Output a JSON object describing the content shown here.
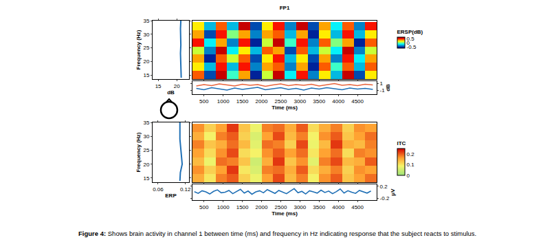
{
  "caption": {
    "label": "Figure 4:",
    "text": "Shows brain activity in channel 1 between time (ms) and frequency in Hz indicating response that the subject reacts to stimulus."
  },
  "chart_data": [
    {
      "type": "heatmap",
      "title": "FP1",
      "x": [
        350,
        650,
        950,
        1250,
        1550,
        1850,
        2150,
        2450,
        2750,
        3050,
        3350,
        3650,
        3950,
        4250,
        4550,
        4850
      ],
      "y": [
        15,
        18,
        21,
        24,
        27,
        30,
        33
      ],
      "z": [
        [
          0.4,
          -0.5,
          0.6,
          -0.1,
          0.3,
          -0.6,
          0.1,
          0.6,
          -0.2,
          0.5,
          -0.4,
          0.2,
          -0.3,
          0.6,
          -0.5,
          0.2
        ],
        [
          0.2,
          -0.3,
          0.5,
          -0.3,
          0.5,
          -0.4,
          0.3,
          0.4,
          -0.4,
          0.3,
          -0.6,
          0.4,
          -0.1,
          0.4,
          -0.3,
          0.4
        ],
        [
          0.3,
          -0.6,
          0.4,
          0.1,
          0.4,
          -0.5,
          0.2,
          0.5,
          -0.3,
          0.2,
          -0.5,
          0.3,
          -0.4,
          0.5,
          -0.2,
          0.3
        ],
        [
          0.1,
          -0.4,
          0.6,
          -0.2,
          0.2,
          -0.3,
          0.4,
          0.3,
          -0.5,
          0.4,
          -0.3,
          0.1,
          -0.2,
          0.6,
          -0.4,
          0.1
        ],
        [
          0.5,
          -0.2,
          0.3,
          -0.4,
          0.5,
          -0.6,
          0.1,
          0.6,
          -0.1,
          0.5,
          -0.4,
          0.4,
          0.0,
          0.3,
          -0.6,
          0.4
        ],
        [
          0.3,
          -0.5,
          0.5,
          0.0,
          0.3,
          -0.4,
          0.3,
          0.4,
          -0.3,
          0.3,
          -0.6,
          0.2,
          -0.3,
          0.5,
          -0.3,
          0.2
        ],
        [
          0.2,
          -0.3,
          0.4,
          -0.3,
          0.6,
          -0.5,
          0.2,
          0.5,
          -0.4,
          0.6,
          -0.5,
          0.3,
          -0.2,
          0.4,
          -0.4,
          0.5
        ]
      ],
      "xlim": [
        200,
        5000
      ],
      "ylim": [
        13.5,
        35
      ],
      "yticks": [
        15,
        20,
        25,
        30,
        35
      ],
      "y_label": "Frequency (Hz)",
      "tick_labels": "y",
      "color": "jet",
      "colorbar": {
        "title": "ERSP(dB)",
        "range": [
          -0.7,
          0.7
        ],
        "ticks": [
          -0.5,
          0,
          0.5
        ]
      }
    },
    {
      "type": "line",
      "x": [
        21.2,
        21.1,
        21.0,
        21.0,
        21.1,
        21.0,
        21.0,
        21.1
      ],
      "y": [
        14,
        17,
        20,
        23,
        26,
        29,
        32,
        35
      ],
      "xlim": [
        13.5,
        23.3
      ],
      "xticks": [
        15,
        20
      ],
      "x_label": "dB",
      "color": "#1f6fb5"
    },
    {
      "type": "line",
      "x": [
        300,
        500,
        700,
        900,
        1100,
        1300,
        1500,
        1700,
        1900,
        2100,
        2300,
        2500,
        2700,
        2900,
        3100,
        3300,
        3500,
        3700,
        3900,
        4100,
        4300,
        4500,
        4700,
        4900
      ],
      "series": [
        {
          "color": "#e8643c",
          "values": [
            0.2,
            0.6,
            0.3,
            0.8,
            0.5,
            0.2,
            0.7,
            0.4,
            0.6,
            0.1,
            0.5,
            0.8,
            0.3,
            0.6,
            0.4,
            0.7,
            0.2,
            0.5,
            0.9,
            0.4,
            0.6,
            0.3,
            0.7,
            0.5
          ]
        },
        {
          "color": "#1f6fb5",
          "values": [
            -0.5,
            -0.9,
            -0.3,
            -0.7,
            -1.0,
            -0.4,
            -0.8,
            -0.5,
            -0.2,
            -0.9,
            -0.6,
            -0.3,
            -0.8,
            -0.5,
            -1.0,
            -0.4,
            -0.7,
            -0.3,
            -0.6,
            -0.9,
            -0.4,
            -0.7,
            -0.5,
            -0.8
          ]
        }
      ],
      "xlim": [
        200,
        5000
      ],
      "xticks": [
        500,
        1000,
        1500,
        2000,
        2500,
        3000,
        3500,
        4000,
        4500
      ],
      "x_label": "Time (ms)",
      "ylim": [
        -2.2,
        1.6
      ],
      "yticks": [
        -1,
        1
      ],
      "y_label": "dB"
    },
    {
      "type": "heatmap",
      "x": [
        350,
        650,
        950,
        1250,
        1550,
        1850,
        2150,
        2450,
        2750,
        3050,
        3350,
        3650,
        3950,
        4250,
        4550,
        4850
      ],
      "y": [
        15,
        18,
        21,
        24,
        27,
        30,
        33
      ],
      "z": [
        [
          0.15,
          0.1,
          0.18,
          0.2,
          0.12,
          0.08,
          0.16,
          0.21,
          0.14,
          0.18,
          0.09,
          0.17,
          0.2,
          0.13,
          0.16,
          0.19
        ],
        [
          0.17,
          0.12,
          0.16,
          0.22,
          0.1,
          0.06,
          0.18,
          0.19,
          0.15,
          0.2,
          0.11,
          0.15,
          0.18,
          0.12,
          0.17,
          0.16
        ],
        [
          0.14,
          0.08,
          0.19,
          0.18,
          0.13,
          0.05,
          0.15,
          0.22,
          0.13,
          0.17,
          0.07,
          0.18,
          0.21,
          0.14,
          0.15,
          0.2
        ],
        [
          0.16,
          0.11,
          0.17,
          0.21,
          0.11,
          0.09,
          0.17,
          0.2,
          0.16,
          0.19,
          0.1,
          0.16,
          0.19,
          0.11,
          0.18,
          0.17
        ],
        [
          0.18,
          0.13,
          0.15,
          0.19,
          0.14,
          0.07,
          0.19,
          0.18,
          0.12,
          0.21,
          0.08,
          0.14,
          0.22,
          0.15,
          0.14,
          0.18
        ],
        [
          0.15,
          0.09,
          0.18,
          0.2,
          0.12,
          0.06,
          0.16,
          0.21,
          0.14,
          0.18,
          0.09,
          0.17,
          0.2,
          0.13,
          0.16,
          0.19
        ],
        [
          0.17,
          0.12,
          0.16,
          0.22,
          0.13,
          0.08,
          0.18,
          0.19,
          0.15,
          0.2,
          0.11,
          0.15,
          0.18,
          0.12,
          0.17,
          0.16
        ]
      ],
      "xlim": [
        200,
        5000
      ],
      "ylim": [
        13.5,
        35
      ],
      "yticks": [
        15,
        20,
        25,
        30,
        35
      ],
      "y_label": "Frequency (Hz)",
      "tick_labels": "y",
      "color": "itc",
      "colorbar": {
        "title": "ITC",
        "range": [
          0,
          0.25
        ],
        "ticks": [
          0,
          0.1,
          0.2
        ]
      }
    },
    {
      "type": "line",
      "x": [
        0.108,
        0.109,
        0.113,
        0.111,
        0.109,
        0.108,
        0.108,
        0.108
      ],
      "y": [
        14,
        17,
        20,
        23,
        26,
        29,
        32,
        35
      ],
      "xlim": [
        0.048,
        0.128
      ],
      "xticks": [
        0.06,
        0.12
      ],
      "x_label": "ERP",
      "color": "#1f6fb5"
    },
    {
      "type": "line",
      "x": [
        250,
        350,
        450,
        550,
        650,
        750,
        850,
        950,
        1050,
        1150,
        1250,
        1350,
        1450,
        1550,
        1650,
        1750,
        1850,
        1950,
        2050,
        2150,
        2250,
        2350,
        2450,
        2550,
        2650,
        2750,
        2850,
        2950,
        3050,
        3150,
        3250,
        3350,
        3450,
        3550,
        3650,
        3750,
        3850,
        3950,
        4050,
        4150,
        4250,
        4350,
        4450,
        4550,
        4650,
        4750,
        4850
      ],
      "values": [
        0.02,
        -0.04,
        0.05,
        0.01,
        -0.06,
        0.03,
        0.08,
        -0.02,
        0.0,
        0.06,
        -0.05,
        0.02,
        0.1,
        -0.03,
        0.04,
        -0.07,
        0.01,
        0.05,
        -0.02,
        0.09,
        0.03,
        -0.04,
        0.06,
        0.0,
        -0.05,
        0.04,
        0.12,
        -0.02,
        0.03,
        -0.06,
        0.05,
        0.01,
        -0.03,
        0.07,
        -0.01,
        0.04,
        -0.05,
        0.02,
        0.11,
        -0.03,
        0.05,
        0.0,
        -0.04,
        0.06,
        0.02,
        -0.03,
        0.04
      ],
      "xlim": [
        200,
        5000
      ],
      "xticks": [
        500,
        1000,
        1500,
        2000,
        2500,
        3000,
        3500,
        4000,
        4500
      ],
      "x_label": "Time (ms)",
      "ylim": [
        -0.27,
        0.27
      ],
      "yticks": [
        -0.2,
        0.2
      ],
      "y_label": "μV",
      "color": "#1f6fb5"
    }
  ]
}
